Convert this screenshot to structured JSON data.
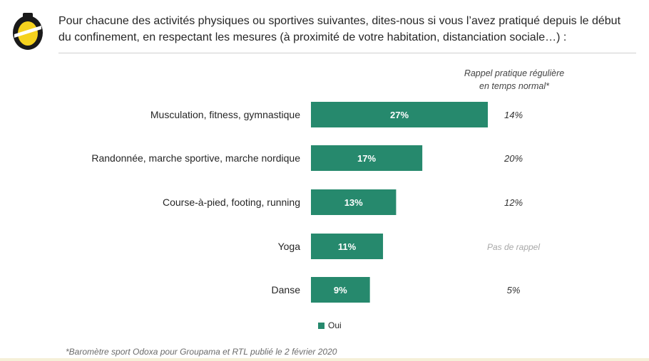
{
  "header": {
    "question": "Pour chacune des activités physiques ou sportives suivantes, dites-nous si vous l’avez pratiqué depuis le début du confinement, en respectant les mesures (à proximité de votre habitation, distanciation sociale…) :",
    "logo_color": "#f5d21e"
  },
  "recall": {
    "header_line1": "Rappel pratique régulière",
    "header_line2": "en temps normal*"
  },
  "chart_data": {
    "type": "bar",
    "orientation": "horizontal",
    "categories": [
      "Musculation, fitness, gymnastique",
      "Randonnée, marche sportive, marche nordique",
      "Course-à-pied, footing, running",
      "Yoga",
      "Danse"
    ],
    "series": [
      {
        "name": "Oui",
        "values": [
          27,
          17,
          13,
          11,
          9
        ],
        "color": "#26896d"
      }
    ],
    "data_labels": [
      "27%",
      "17%",
      "13%",
      "11%",
      "9%"
    ],
    "recall_labels": [
      "14%",
      "20%",
      "12%",
      "Pas de rappel",
      "5%"
    ],
    "legend_placement": "bottom",
    "grid": false
  },
  "legend": {
    "label": "Oui"
  },
  "footnote": "*Baromètre sport Odoxa pour Groupama et RTL publié le 2 février 2020"
}
